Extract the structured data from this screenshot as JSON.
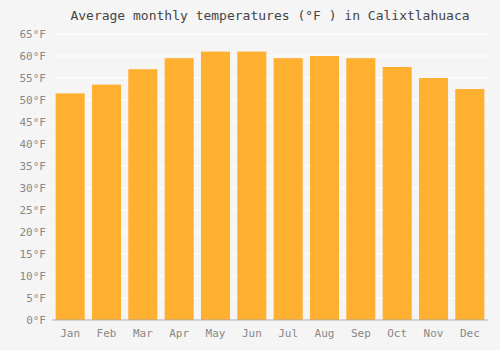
{
  "chart_data": {
    "type": "bar",
    "title": "Average monthly temperatures (°F ) in Calixtlahuaca",
    "categories": [
      "Jan",
      "Feb",
      "Mar",
      "Apr",
      "May",
      "Jun",
      "Jul",
      "Aug",
      "Sep",
      "Oct",
      "Nov",
      "Dec"
    ],
    "values": [
      51.5,
      53.5,
      57.0,
      59.5,
      61.0,
      61.0,
      59.5,
      60.0,
      59.5,
      57.5,
      55.0,
      52.5
    ],
    "color": "#FFB030",
    "ylim": [
      0,
      65
    ],
    "yticks": [
      {
        "value": 0,
        "label": "0°F"
      },
      {
        "value": 5,
        "label": "5°F"
      },
      {
        "value": 10,
        "label": "10°F"
      },
      {
        "value": 15,
        "label": "15°F"
      },
      {
        "value": 20,
        "label": "20°F"
      },
      {
        "value": 25,
        "label": "25°F"
      },
      {
        "value": 30,
        "label": "30°F"
      },
      {
        "value": 35,
        "label": "35°F"
      },
      {
        "value": 40,
        "label": "40°F"
      },
      {
        "value": 45,
        "label": "45°F"
      },
      {
        "value": 50,
        "label": "50°F"
      },
      {
        "value": 55,
        "label": "55°F"
      },
      {
        "value": 60,
        "label": "60°F"
      },
      {
        "value": 65,
        "label": "65°F"
      }
    ],
    "grid": true
  }
}
